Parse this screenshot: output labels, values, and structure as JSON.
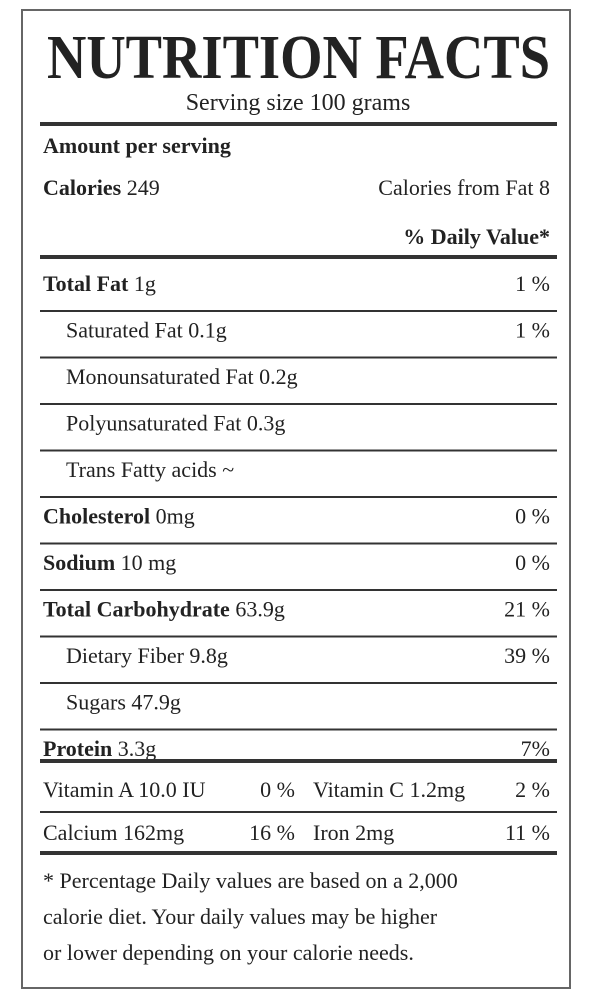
{
  "title": "NUTRITION FACTS",
  "serving_size": "Serving size 100 grams",
  "amount_per_serving": "Amount per serving",
  "calories": {
    "label": "Calories",
    "amount": "249"
  },
  "calories_from_fat": "Calories from Fat 8",
  "daily_value_header": "% Daily Value*",
  "rows": [
    {
      "name": "Total Fat",
      "amount": "1g",
      "dv": "1 %"
    },
    {
      "name": "Saturated Fat 0.1g",
      "dv": "1 %"
    },
    {
      "name": "Monounsaturated  Fat 0.2g"
    },
    {
      "name": "Polyunsaturated Fat 0.3g"
    },
    {
      "name": "Trans Fatty acids ~"
    },
    {
      "name": "Cholesterol",
      "amount": "0mg",
      "dv": "0 %"
    },
    {
      "name": "Sodium",
      "amount": "10 mg",
      "dv": "0 %"
    },
    {
      "name": "Total Carbohydrate",
      "amount": "63.9g",
      "dv": "21 %"
    },
    {
      "name": "Dietary Fiber 9.8g",
      "dv": "39 %"
    },
    {
      "name": "Sugars 47.9g"
    },
    {
      "name": "Protein",
      "amount": "3.3g",
      "dv": "7%"
    }
  ],
  "vitamins": [
    [
      "Vitamin A 10.0 IU",
      "0 %",
      "Vitamin C 1.2mg",
      "2 %"
    ],
    [
      "Calcium 162mg",
      "16 %",
      "Iron 2mg",
      "11 %"
    ]
  ],
  "footnote": [
    "* Percentage Daily values are based on a 2,000",
    "calorie diet. Your daily values may be higher",
    "or lower depending on your calorie needs."
  ]
}
